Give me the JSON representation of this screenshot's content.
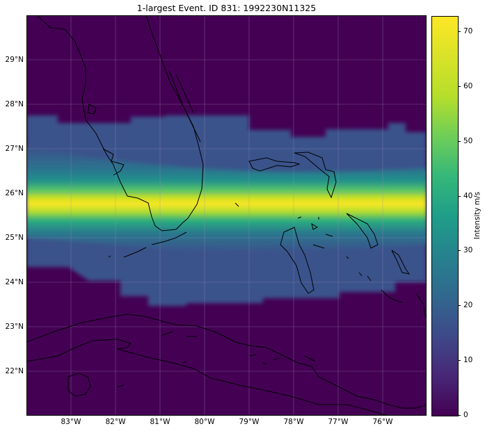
{
  "title": "1-largest Event. ID 831: 1992230N11325",
  "lat_labels": [
    "29°N",
    "28°N",
    "27°N",
    "26°N",
    "25°N",
    "24°N",
    "23°N",
    "22°N"
  ],
  "lon_labels": [
    "83°W",
    "82°W",
    "81°W",
    "80°W",
    "79°W",
    "78°W",
    "77°W",
    "76°W"
  ],
  "colorbar": {
    "label": "Intensity m/s",
    "ticks": [
      "0",
      "10",
      "20",
      "30",
      "40",
      "50",
      "60",
      "70"
    ],
    "colormap": "viridis",
    "range": [
      0,
      73
    ]
  },
  "map_extent": {
    "lon": [
      -84.0,
      -75.0
    ],
    "lat": [
      21.0,
      30.0
    ]
  },
  "colors": {
    "background": "#440154",
    "max": "#fde725",
    "coast": "#000000",
    "grid": "#888888"
  },
  "chart_data": {
    "type": "heatmap",
    "title": "1-largest Event. ID 831: 1992230N11325",
    "colorbar_label": "Intensity m/s",
    "value_range": [
      0,
      73
    ],
    "track_center_lat_by_lon": [
      {
        "lon": -84.0,
        "lat": 26.2
      },
      {
        "lon": -82.0,
        "lat": 25.95
      },
      {
        "lon": -80.5,
        "lat": 25.8
      },
      {
        "lon": -79.0,
        "lat": 25.7
      },
      {
        "lon": -77.0,
        "lat": 25.6
      },
      {
        "lon": -75.0,
        "lat": 25.5
      }
    ],
    "peak_intensity": 72,
    "wind_field_extent_lat": [
      23.5,
      27.8
    ],
    "wind_field_region_intensity": 22
  }
}
